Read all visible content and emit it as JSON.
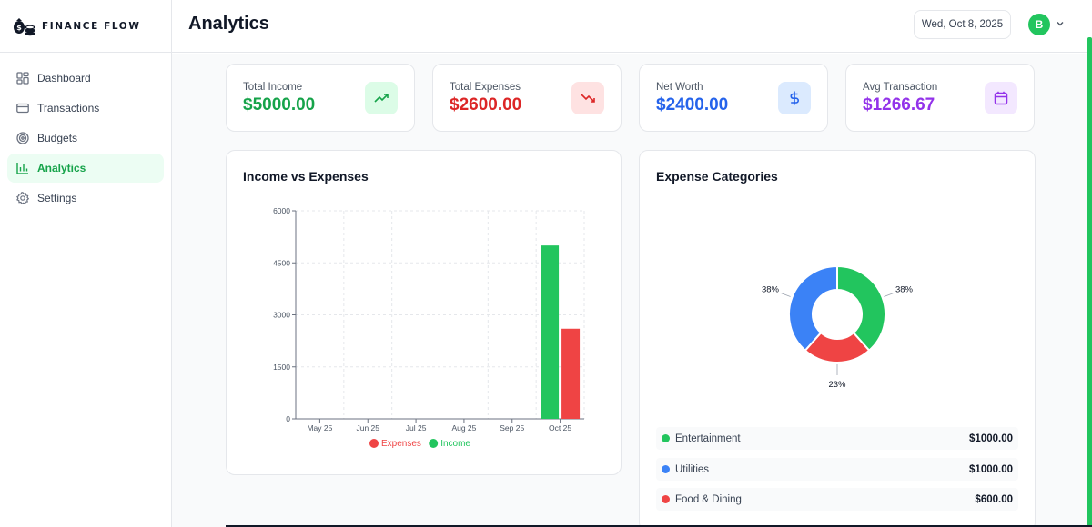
{
  "brand": {
    "name": "FINANCE FLOW"
  },
  "sidebar": {
    "items": [
      {
        "label": "Dashboard",
        "icon": "dashboard-grid-icon",
        "active": false
      },
      {
        "label": "Transactions",
        "icon": "credit-card-icon",
        "active": false
      },
      {
        "label": "Budgets",
        "icon": "target-icon",
        "active": false
      },
      {
        "label": "Analytics",
        "icon": "bar-chart-icon",
        "active": true
      },
      {
        "label": "Settings",
        "icon": "gear-icon",
        "active": false
      }
    ]
  },
  "header": {
    "title": "Analytics",
    "date": "Wed, Oct 8, 2025",
    "avatar_initial": "B"
  },
  "stats": [
    {
      "label": "Total Income",
      "value": "$5000.00",
      "color": "#16a34a",
      "icon": "trending-up-icon",
      "icon_bg": "#dcfce7"
    },
    {
      "label": "Total Expenses",
      "value": "$2600.00",
      "color": "#dc2626",
      "icon": "trending-down-icon",
      "icon_bg": "#fee2e2"
    },
    {
      "label": "Net Worth",
      "value": "$2400.00",
      "color": "#2563eb",
      "icon": "dollar-icon",
      "icon_bg": "#dbeafe"
    },
    {
      "label": "Avg Transaction",
      "value": "$1266.67",
      "color": "#9333ea",
      "icon": "calendar-icon",
      "icon_bg": "#f3e8ff"
    }
  ],
  "income_chart": {
    "title": "Income vs Expenses"
  },
  "expense_chart": {
    "title": "Expense Categories"
  },
  "categories": [
    {
      "name": "Entertainment",
      "amount": "$1000.00",
      "color": "#22c55e"
    },
    {
      "name": "Utilities",
      "amount": "$1000.00",
      "color": "#3b82f6"
    },
    {
      "name": "Food & Dining",
      "amount": "$600.00",
      "color": "#ef4444"
    }
  ],
  "chart_data": [
    {
      "type": "bar",
      "title": "Income vs Expenses",
      "categories": [
        "May 25",
        "Jun 25",
        "Jul 25",
        "Aug 25",
        "Sep 25",
        "Oct 25"
      ],
      "series": [
        {
          "name": "Income",
          "color": "#22c55e",
          "values": [
            0,
            0,
            0,
            0,
            0,
            5000
          ]
        },
        {
          "name": "Expenses",
          "color": "#ef4444",
          "values": [
            0,
            0,
            0,
            0,
            0,
            2600
          ]
        }
      ],
      "legend_order": [
        "Expenses",
        "Income"
      ],
      "yticks": [
        "0",
        "1500",
        "3000",
        "4500",
        "6000"
      ],
      "ylim": [
        0,
        6000
      ],
      "grid": true,
      "legend": "bottom"
    },
    {
      "type": "pie",
      "title": "Expense Categories",
      "donut": true,
      "slices": [
        {
          "name": "Entertainment",
          "value": 1000,
          "label": "38%",
          "color": "#22c55e"
        },
        {
          "name": "Food & Dining",
          "value": 600,
          "label": "23%",
          "color": "#ef4444"
        },
        {
          "name": "Utilities",
          "value": 1000,
          "label": "38%",
          "color": "#3b82f6"
        }
      ]
    }
  ]
}
